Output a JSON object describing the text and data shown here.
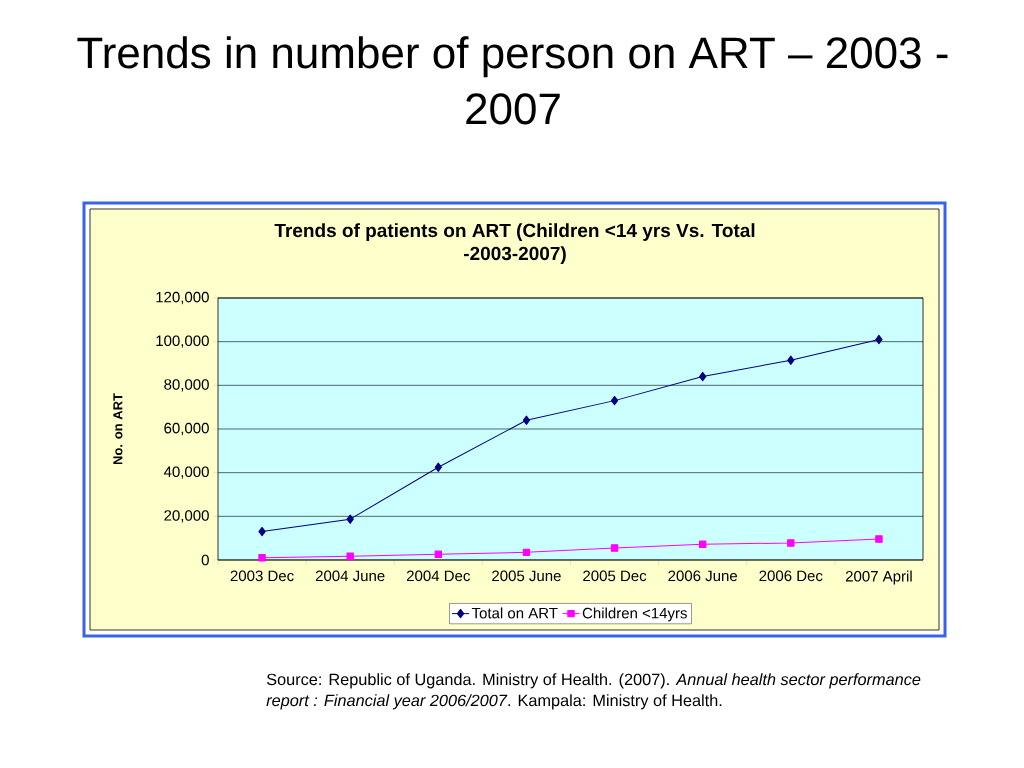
{
  "chart_data": {
    "type": "line",
    "title": "Trends in number of person on ART – 2003 - 2007",
    "subtitle": "Trends of patients on ART (Children <14 yrs Vs. Total -2003-2007)",
    "ylabel": "No. on ART",
    "categories": [
      "2003 Dec",
      "2004 June",
      "2004 Dec",
      "2005 June",
      "2005 Dec",
      "2006 June",
      "2006 Dec",
      "2007 April"
    ],
    "series": [
      {
        "name": "Total on ART",
        "color": "#000080",
        "marker": "diamond",
        "values": [
          13000,
          18700,
          42500,
          64000,
          73000,
          84000,
          91500,
          101000
        ]
      },
      {
        "name": "Children <14yrs",
        "color": "#FF00FF",
        "marker": "square",
        "values": [
          1000,
          1700,
          2600,
          3500,
          5500,
          7200,
          7800,
          9600
        ]
      }
    ],
    "ylim": [
      0,
      120000
    ],
    "yticks": [
      0,
      {
        "value": 20000,
        "label": "20,000"
      },
      {
        "value": 40000,
        "label": "40,000"
      },
      {
        "value": 60000,
        "label": "60,000"
      },
      {
        "value": 80000,
        "label": "80,000"
      },
      {
        "value": 100000,
        "label": "100,000"
      },
      {
        "value": 120000,
        "label": "120,000"
      }
    ],
    "grid": "y",
    "legend": "bottom",
    "annotations": [
      "Source: Republic of Uganda. Ministry of Health. (2007). *Annual health sector performance report : Financial year 2006/2007*. Kampala: Ministry of Health."
    ]
  }
}
